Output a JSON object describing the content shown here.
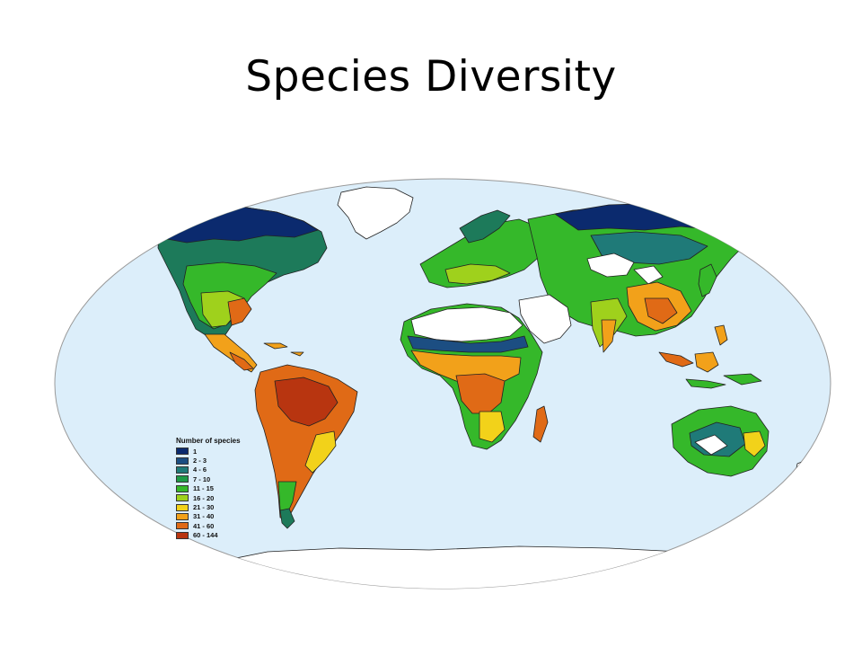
{
  "slide": {
    "title": "Species Diversity"
  },
  "map": {
    "ocean_color": "#dceefa",
    "land_outline_color": "#222222"
  },
  "legend": {
    "title": "Number of species",
    "items": [
      {
        "label": "1",
        "color": "#0b2a6e"
      },
      {
        "label": "2 - 3",
        "color": "#1c4e82"
      },
      {
        "label": "4 - 6",
        "color": "#1f7a78"
      },
      {
        "label": "7 - 10",
        "color": "#1e9a46"
      },
      {
        "label": "11 - 15",
        "color": "#35b82a"
      },
      {
        "label": "16 - 20",
        "color": "#9fd11c"
      },
      {
        "label": "21 - 30",
        "color": "#f2d21a"
      },
      {
        "label": "31 - 40",
        "color": "#f2a11a"
      },
      {
        "label": "41 - 60",
        "color": "#e06a16"
      },
      {
        "label": "60 - 144",
        "color": "#b83510"
      }
    ]
  }
}
